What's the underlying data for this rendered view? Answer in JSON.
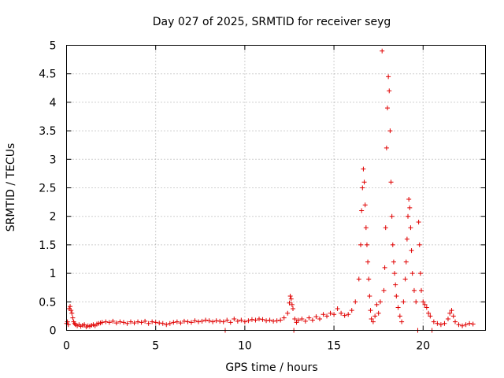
{
  "chart_data": {
    "type": "scatter",
    "title": "Day 027 of 2025, SRMTID for receiver seyg",
    "xlabel": "GPS time / hours",
    "ylabel": "SRMTID / TECUs",
    "xlim": [
      0,
      23.5
    ],
    "ylim": [
      0,
      5
    ],
    "xticks": [
      0,
      5,
      10,
      15,
      20
    ],
    "yticks": [
      0,
      0.5,
      1,
      1.5,
      2,
      2.5,
      3,
      3.5,
      4,
      4.5,
      5
    ],
    "xtick_labels": [
      "0",
      "5",
      "10",
      "15",
      "20"
    ],
    "ytick_labels": [
      "0",
      "0.5",
      "1",
      "1.5",
      "2",
      "2.5",
      "3",
      "3.5",
      "4",
      "4.5",
      "5"
    ],
    "grid": true,
    "marker": "+",
    "color": "#e00000",
    "series": [
      {
        "name": "SRMTID",
        "points": [
          [
            0.0,
            0.12
          ],
          [
            0.05,
            0.15
          ],
          [
            0.1,
            0.1
          ],
          [
            0.15,
            0.38
          ],
          [
            0.2,
            0.42
          ],
          [
            0.25,
            0.35
          ],
          [
            0.3,
            0.3
          ],
          [
            0.35,
            0.22
          ],
          [
            0.4,
            0.15
          ],
          [
            0.45,
            0.12
          ],
          [
            0.5,
            0.1
          ],
          [
            0.6,
            0.08
          ],
          [
            0.7,
            0.1
          ],
          [
            0.8,
            0.07
          ],
          [
            0.9,
            0.09
          ],
          [
            1.0,
            0.1
          ],
          [
            1.1,
            0.06
          ],
          [
            1.2,
            0.08
          ],
          [
            1.3,
            0.07
          ],
          [
            1.4,
            0.09
          ],
          [
            1.5,
            0.1
          ],
          [
            1.6,
            0.08
          ],
          [
            1.7,
            0.11
          ],
          [
            1.8,
            0.12
          ],
          [
            1.9,
            0.13
          ],
          [
            2.0,
            0.14
          ],
          [
            2.2,
            0.15
          ],
          [
            2.4,
            0.14
          ],
          [
            2.6,
            0.16
          ],
          [
            2.8,
            0.13
          ],
          [
            3.0,
            0.15
          ],
          [
            3.2,
            0.14
          ],
          [
            3.4,
            0.12
          ],
          [
            3.6,
            0.15
          ],
          [
            3.8,
            0.13
          ],
          [
            4.0,
            0.15
          ],
          [
            4.2,
            0.14
          ],
          [
            4.4,
            0.16
          ],
          [
            4.6,
            0.12
          ],
          [
            4.8,
            0.15
          ],
          [
            5.0,
            0.14
          ],
          [
            5.2,
            0.13
          ],
          [
            5.4,
            0.12
          ],
          [
            5.6,
            0.1
          ],
          [
            5.8,
            0.12
          ],
          [
            6.0,
            0.14
          ],
          [
            6.2,
            0.15
          ],
          [
            6.4,
            0.13
          ],
          [
            6.6,
            0.16
          ],
          [
            6.8,
            0.15
          ],
          [
            7.0,
            0.14
          ],
          [
            7.2,
            0.17
          ],
          [
            7.4,
            0.15
          ],
          [
            7.6,
            0.16
          ],
          [
            7.8,
            0.18
          ],
          [
            8.0,
            0.17
          ],
          [
            8.2,
            0.15
          ],
          [
            8.4,
            0.17
          ],
          [
            8.6,
            0.16
          ],
          [
            8.8,
            0.15
          ],
          [
            8.9,
            0.0
          ],
          [
            9.0,
            0.18
          ],
          [
            9.2,
            0.14
          ],
          [
            9.4,
            0.2
          ],
          [
            9.6,
            0.16
          ],
          [
            9.8,
            0.18
          ],
          [
            10.0,
            0.15
          ],
          [
            10.2,
            0.17
          ],
          [
            10.4,
            0.19
          ],
          [
            10.6,
            0.18
          ],
          [
            10.8,
            0.2
          ],
          [
            11.0,
            0.19
          ],
          [
            11.2,
            0.17
          ],
          [
            11.4,
            0.18
          ],
          [
            11.6,
            0.16
          ],
          [
            11.8,
            0.17
          ],
          [
            12.0,
            0.18
          ],
          [
            12.2,
            0.22
          ],
          [
            12.4,
            0.3
          ],
          [
            12.5,
            0.48
          ],
          [
            12.55,
            0.6
          ],
          [
            12.6,
            0.55
          ],
          [
            12.65,
            0.45
          ],
          [
            12.7,
            0.38
          ],
          [
            12.75,
            0.0
          ],
          [
            12.8,
            0.2
          ],
          [
            12.9,
            0.14
          ],
          [
            13.0,
            0.18
          ],
          [
            13.2,
            0.2
          ],
          [
            13.4,
            0.16
          ],
          [
            13.6,
            0.22
          ],
          [
            13.8,
            0.18
          ],
          [
            14.0,
            0.24
          ],
          [
            14.2,
            0.2
          ],
          [
            14.4,
            0.28
          ],
          [
            14.6,
            0.25
          ],
          [
            14.8,
            0.3
          ],
          [
            15.0,
            0.28
          ],
          [
            15.2,
            0.38
          ],
          [
            15.4,
            0.3
          ],
          [
            15.6,
            0.26
          ],
          [
            15.8,
            0.28
          ],
          [
            16.0,
            0.35
          ],
          [
            16.2,
            0.5
          ],
          [
            16.4,
            0.9
          ],
          [
            16.5,
            1.5
          ],
          [
            16.55,
            2.1
          ],
          [
            16.6,
            2.5
          ],
          [
            16.65,
            2.83
          ],
          [
            16.7,
            2.6
          ],
          [
            16.75,
            2.2
          ],
          [
            16.8,
            1.8
          ],
          [
            16.85,
            1.5
          ],
          [
            16.9,
            1.2
          ],
          [
            16.95,
            0.9
          ],
          [
            17.0,
            0.6
          ],
          [
            17.05,
            0.35
          ],
          [
            17.1,
            0.2
          ],
          [
            17.2,
            0.15
          ],
          [
            17.3,
            0.25
          ],
          [
            17.4,
            0.45
          ],
          [
            17.5,
            0.3
          ],
          [
            17.6,
            0.5
          ],
          [
            17.7,
            4.9
          ],
          [
            17.8,
            0.7
          ],
          [
            17.85,
            1.1
          ],
          [
            17.9,
            1.8
          ],
          [
            17.95,
            3.2
          ],
          [
            18.0,
            3.9
          ],
          [
            18.05,
            4.45
          ],
          [
            18.1,
            4.2
          ],
          [
            18.15,
            3.5
          ],
          [
            18.2,
            2.6
          ],
          [
            18.25,
            2.0
          ],
          [
            18.3,
            1.5
          ],
          [
            18.35,
            1.2
          ],
          [
            18.4,
            1.0
          ],
          [
            18.45,
            0.8
          ],
          [
            18.5,
            0.6
          ],
          [
            18.6,
            0.4
          ],
          [
            18.7,
            0.25
          ],
          [
            18.8,
            0.15
          ],
          [
            18.9,
            0.5
          ],
          [
            19.0,
            0.9
          ],
          [
            19.05,
            1.2
          ],
          [
            19.1,
            1.6
          ],
          [
            19.15,
            2.0
          ],
          [
            19.2,
            2.3
          ],
          [
            19.25,
            2.15
          ],
          [
            19.3,
            1.8
          ],
          [
            19.35,
            1.4
          ],
          [
            19.4,
            1.0
          ],
          [
            19.5,
            0.7
          ],
          [
            19.6,
            0.5
          ],
          [
            19.7,
            0.0
          ],
          [
            19.75,
            1.9
          ],
          [
            19.8,
            1.5
          ],
          [
            19.85,
            1.0
          ],
          [
            19.9,
            0.7
          ],
          [
            20.0,
            0.5
          ],
          [
            20.1,
            0.45
          ],
          [
            20.2,
            0.4
          ],
          [
            20.3,
            0.3
          ],
          [
            20.4,
            0.25
          ],
          [
            20.5,
            0.0
          ],
          [
            20.6,
            0.15
          ],
          [
            20.8,
            0.12
          ],
          [
            21.0,
            0.1
          ],
          [
            21.2,
            0.12
          ],
          [
            21.4,
            0.2
          ],
          [
            21.5,
            0.3
          ],
          [
            21.6,
            0.35
          ],
          [
            21.7,
            0.25
          ],
          [
            21.8,
            0.15
          ],
          [
            22.0,
            0.1
          ],
          [
            22.2,
            0.08
          ],
          [
            22.4,
            0.1
          ],
          [
            22.6,
            0.12
          ],
          [
            22.8,
            0.11
          ]
        ]
      }
    ]
  }
}
